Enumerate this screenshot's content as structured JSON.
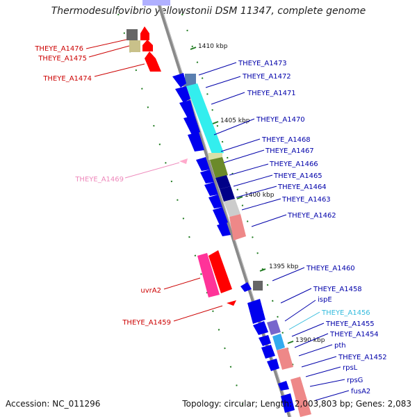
{
  "title": "Thermodesulfovibrio yellowstonii DSM 11347, complete genome",
  "accession": "Accession: NC_011296",
  "summary": "Topology: circular; Length: 2,003,803 bp; Genes: 2,083",
  "colors": {
    "backbone": "#8a8a8a",
    "tick": "#1e7a1e",
    "label_red": "#cc0000",
    "label_blue": "#0000aa",
    "label_pink": "#ee88bb",
    "label_cyan": "#33bbdd"
  },
  "scale_labels": [
    "1410 kbp",
    "1405 kbp",
    "1400 kbp",
    "1395 kbp",
    "1390 kbp"
  ],
  "left_genes": [
    "THEYE_A1476",
    "THEYE_A1475",
    "THEYE_A1474",
    "THEYE_A1469",
    "uvrA2",
    "THEYE_A1459"
  ],
  "right_genes": [
    "THEYE_A1473",
    "THEYE_A1472",
    "THEYE_A1471",
    "THEYE_A1470",
    "THEYE_A1468",
    "THEYE_A1467",
    "THEYE_A1466",
    "THEYE_A1465",
    "THEYE_A1464",
    "THEYE_A1463",
    "THEYE_A1462",
    "THEYE_A1460",
    "THEYE_A1458",
    "ispE",
    "THEYE_A1456",
    "THEYE_A1455",
    "THEYE_A1454",
    "pth",
    "THEYE_A1452",
    "rpsL",
    "rpsG",
    "fusA2"
  ]
}
